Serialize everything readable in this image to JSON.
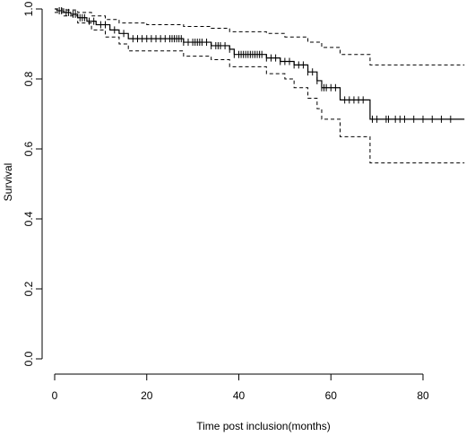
{
  "chart_data": {
    "type": "line",
    "title": "",
    "xlabel": "Time post inclusion(months)",
    "ylabel": "Survival",
    "xlim": [
      0,
      89
    ],
    "ylim": [
      0,
      1.0
    ],
    "x_ticks": [
      0,
      20,
      40,
      60,
      80
    ],
    "y_ticks": [
      0.0,
      0.2,
      0.4,
      0.6,
      0.8,
      1.0
    ],
    "x_tick_labels": [
      "0",
      "20",
      "40",
      "60",
      "80"
    ],
    "y_tick_labels": [
      "0.0",
      "0.2",
      "0.4",
      "0.6",
      "0.8",
      "1.0"
    ],
    "grid": false,
    "series": [
      {
        "role": "estimate",
        "style": "solid",
        "steps": [
          [
            0,
            1.0
          ],
          [
            0.5,
            0.995
          ],
          [
            2,
            0.99
          ],
          [
            3.5,
            0.985
          ],
          [
            5,
            0.975
          ],
          [
            7,
            0.965
          ],
          [
            9,
            0.955
          ],
          [
            12,
            0.94
          ],
          [
            14,
            0.93
          ],
          [
            16,
            0.915
          ],
          [
            28,
            0.905
          ],
          [
            34,
            0.895
          ],
          [
            38,
            0.885
          ],
          [
            39,
            0.87
          ],
          [
            46,
            0.86
          ],
          [
            49,
            0.85
          ],
          [
            52,
            0.84
          ],
          [
            55,
            0.82
          ],
          [
            57,
            0.795
          ],
          [
            58,
            0.775
          ],
          [
            62,
            0.74
          ],
          [
            68.5,
            0.685
          ],
          [
            89,
            0.685
          ]
        ],
        "censored": [
          1,
          1.5,
          2.5,
          3,
          4,
          4.5,
          5.5,
          6,
          6.5,
          7.5,
          8.5,
          10,
          11,
          13,
          15,
          17,
          18,
          19,
          20,
          21,
          22,
          23,
          24,
          25,
          25.5,
          26,
          26.5,
          27,
          27.5,
          28,
          29,
          30,
          30.5,
          31,
          31.5,
          32,
          33,
          34,
          35,
          35.5,
          36,
          37,
          38,
          39,
          40,
          40.5,
          41,
          41.5,
          42,
          42.5,
          43,
          43.5,
          44,
          44.5,
          45,
          46,
          47,
          48,
          49,
          50,
          51,
          52,
          53,
          54,
          55,
          56,
          57,
          58,
          58.5,
          59,
          60,
          61,
          63,
          64,
          65,
          66,
          67,
          69,
          70,
          72,
          72.5,
          74,
          75,
          76,
          78,
          80,
          82,
          84,
          86
        ]
      },
      {
        "role": "upper 95% CI",
        "style": "dashed",
        "steps": [
          [
            0,
            1.0
          ],
          [
            2,
            0.997
          ],
          [
            5,
            0.99
          ],
          [
            8,
            0.98
          ],
          [
            11,
            0.97
          ],
          [
            14,
            0.96
          ],
          [
            20,
            0.955
          ],
          [
            28,
            0.95
          ],
          [
            34,
            0.945
          ],
          [
            38,
            0.935
          ],
          [
            46,
            0.93
          ],
          [
            50,
            0.92
          ],
          [
            55,
            0.905
          ],
          [
            58,
            0.89
          ],
          [
            62,
            0.87
          ],
          [
            68.5,
            0.84
          ],
          [
            89,
            0.84
          ]
        ]
      },
      {
        "role": "lower 95% CI",
        "style": "dashed",
        "steps": [
          [
            0,
            0.99
          ],
          [
            2,
            0.98
          ],
          [
            5,
            0.96
          ],
          [
            8,
            0.94
          ],
          [
            11,
            0.92
          ],
          [
            14,
            0.9
          ],
          [
            16,
            0.88
          ],
          [
            28,
            0.865
          ],
          [
            34,
            0.855
          ],
          [
            38,
            0.835
          ],
          [
            46,
            0.815
          ],
          [
            50,
            0.8
          ],
          [
            52,
            0.775
          ],
          [
            55,
            0.745
          ],
          [
            57,
            0.715
          ],
          [
            58,
            0.685
          ],
          [
            62,
            0.635
          ],
          [
            68.5,
            0.56
          ],
          [
            89,
            0.56
          ]
        ]
      }
    ]
  }
}
